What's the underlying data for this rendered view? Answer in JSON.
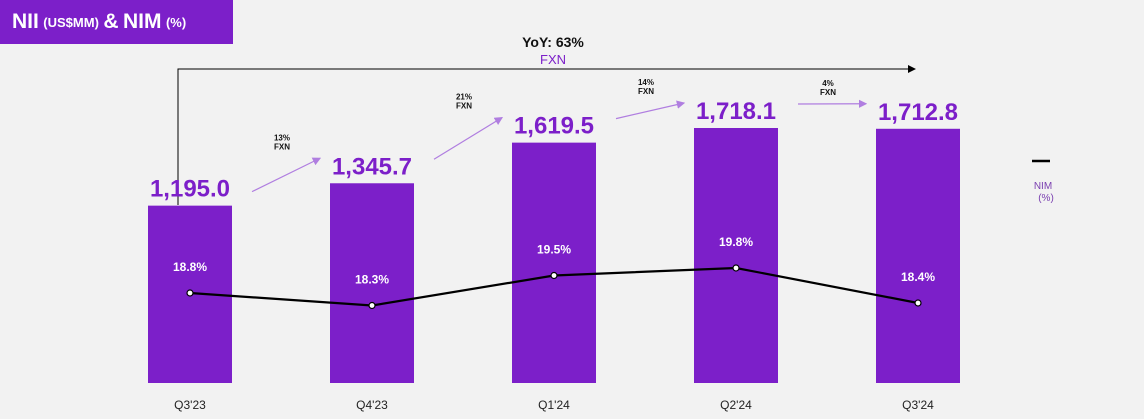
{
  "title": {
    "nii": "NII",
    "nii_unit": "(US$MM)",
    "amp": "&",
    "nim": "NIM",
    "nim_unit": "(%)"
  },
  "colors": {
    "bar": "#7c1fc9",
    "line": "#000000",
    "background": "#f2f2f2",
    "arrow": "#b07ee0"
  },
  "chart_data": {
    "type": "bar",
    "title": "NII (US$MM) & NIM (%)",
    "categories": [
      "Q3'23",
      "Q4'23",
      "Q1'24",
      "Q2'24",
      "Q3'24"
    ],
    "series": [
      {
        "name": "NII (US$MM)",
        "type": "bar",
        "values": [
          1195.0,
          1345.7,
          1619.5,
          1718.1,
          1712.8
        ],
        "labels": [
          "1,195.0",
          "1,345.7",
          "1,619.5",
          "1,718.1",
          "1,712.8"
        ]
      },
      {
        "name": "NIM (%)",
        "type": "line",
        "values": [
          18.8,
          18.3,
          19.5,
          19.8,
          18.4
        ],
        "labels": [
          "18.8%",
          "18.3%",
          "19.5%",
          "19.8%",
          "18.4%"
        ]
      }
    ],
    "growth_annotations": [
      {
        "pct": "13%",
        "unit": "FXN"
      },
      {
        "pct": "21%",
        "unit": "FXN"
      },
      {
        "pct": "14%",
        "unit": "FXN"
      },
      {
        "pct": "4%",
        "unit": "FXN"
      }
    ],
    "yoy": {
      "label": "YoY: 63%",
      "unit": "FXN"
    },
    "legend": {
      "label": "NIM",
      "unit": "(%)"
    },
    "nim_range": [
      17,
      21
    ],
    "bar_ylim": [
      0,
      2000
    ]
  }
}
